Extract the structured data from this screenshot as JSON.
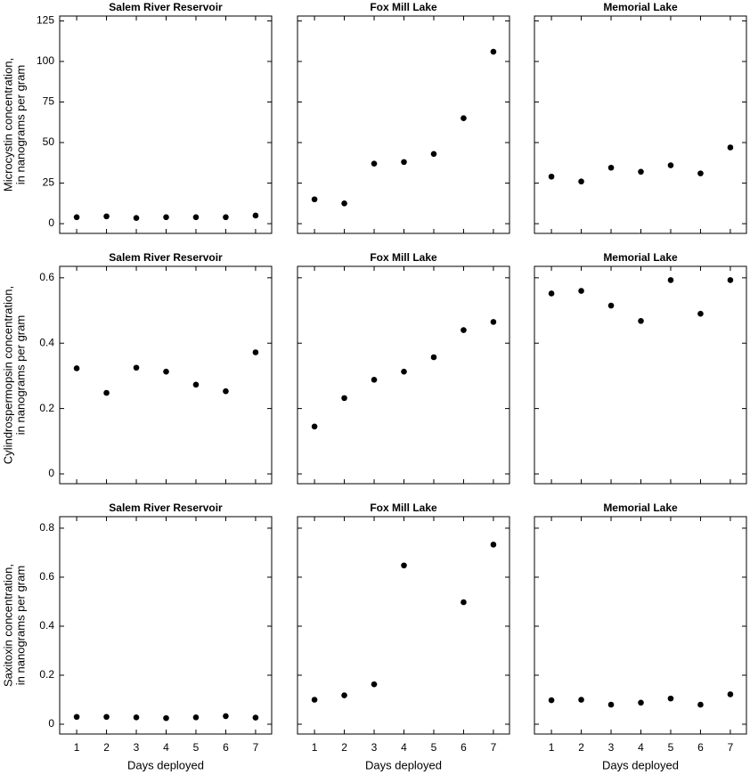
{
  "chart_data": [
    {
      "type": "scatter",
      "title": "Salem River Reservoir",
      "ylabel": [
        "Microcystin concentration,",
        "in nanograms per gram"
      ],
      "x": [
        1,
        2,
        3,
        4,
        5,
        6,
        7
      ],
      "values": [
        4,
        4.5,
        3.5,
        4,
        4,
        4,
        5
      ],
      "xlim": [
        0.43,
        7.54
      ],
      "ylim": [
        -6,
        128
      ],
      "xticks": [
        1,
        2,
        3,
        4,
        5,
        6,
        7
      ],
      "yticks": [
        0,
        25,
        50,
        75,
        100,
        125
      ],
      "color": "#000000"
    },
    {
      "type": "scatter",
      "title": "Fox Mill Lake",
      "x": [
        1,
        2,
        3,
        4,
        5,
        6,
        7
      ],
      "values": [
        15,
        12.5,
        37,
        38,
        43,
        65,
        106
      ],
      "xlim": [
        0.43,
        7.54
      ],
      "ylim": [
        -6,
        128
      ],
      "xticks": [
        1,
        2,
        3,
        4,
        5,
        6,
        7
      ],
      "yticks": [
        0,
        25,
        50,
        75,
        100,
        125
      ],
      "color": "#000000"
    },
    {
      "type": "scatter",
      "title": "Memorial Lake",
      "x": [
        1,
        2,
        3,
        4,
        5,
        6,
        7
      ],
      "values": [
        29,
        26,
        34.5,
        32,
        36,
        31,
        47
      ],
      "xlim": [
        0.43,
        7.54
      ],
      "ylim": [
        -6,
        128
      ],
      "xticks": [
        1,
        2,
        3,
        4,
        5,
        6,
        7
      ],
      "yticks": [
        0,
        25,
        50,
        75,
        100,
        125
      ],
      "color": "#000000"
    },
    {
      "type": "scatter",
      "title": "Salem River Reservoir",
      "ylabel": [
        "Cylindrospermopsin concentration,",
        "in nanograms per gram"
      ],
      "x": [
        1,
        2,
        3,
        4,
        5,
        6,
        7
      ],
      "values": [
        0.323,
        0.248,
        0.325,
        0.313,
        0.273,
        0.253,
        0.372
      ],
      "xlim": [
        0.43,
        7.54
      ],
      "ylim": [
        -0.03,
        0.635
      ],
      "xticks": [
        1,
        2,
        3,
        4,
        5,
        6,
        7
      ],
      "yticks": [
        0,
        0.2,
        0.4,
        0.6
      ],
      "color": "#000000"
    },
    {
      "type": "scatter",
      "title": "Fox Mill Lake",
      "x": [
        1,
        2,
        3,
        4,
        5,
        6,
        7
      ],
      "values": [
        0.145,
        0.232,
        0.288,
        0.313,
        0.357,
        0.44,
        0.465
      ],
      "xlim": [
        0.43,
        7.54
      ],
      "ylim": [
        -0.03,
        0.635
      ],
      "xticks": [
        1,
        2,
        3,
        4,
        5,
        6,
        7
      ],
      "yticks": [
        0,
        0.2,
        0.4,
        0.6
      ],
      "color": "#000000"
    },
    {
      "type": "scatter",
      "title": "Memorial Lake",
      "x": [
        1,
        2,
        3,
        4,
        5,
        6,
        7
      ],
      "values": [
        0.552,
        0.56,
        0.515,
        0.468,
        0.593,
        0.49,
        0.593
      ],
      "xlim": [
        0.43,
        7.54
      ],
      "ylim": [
        -0.03,
        0.635
      ],
      "xticks": [
        1,
        2,
        3,
        4,
        5,
        6,
        7
      ],
      "yticks": [
        0,
        0.2,
        0.4,
        0.6
      ],
      "color": "#000000"
    },
    {
      "type": "scatter",
      "title": "Salem River Reservoir",
      "ylabel": [
        "Saxitoxin concentration,",
        "in nanograms per gram"
      ],
      "xlabel": "Days deployed",
      "x": [
        1,
        2,
        3,
        4,
        5,
        6,
        7
      ],
      "values": [
        0.03,
        0.03,
        0.028,
        0.025,
        0.028,
        0.033,
        0.027
      ],
      "xlim": [
        0.43,
        7.54
      ],
      "ylim": [
        -0.04,
        0.847
      ],
      "xticks": [
        1,
        2,
        3,
        4,
        5,
        6,
        7
      ],
      "yticks": [
        0,
        0.2,
        0.4,
        0.6,
        0.8
      ],
      "color": "#000000"
    },
    {
      "type": "scatter",
      "title": "Fox Mill Lake",
      "xlabel": "Days deployed",
      "x": [
        1,
        2,
        3,
        4,
        5,
        6,
        7
      ],
      "values": [
        0.1,
        0.118,
        0.163,
        0.648,
        null,
        0.498,
        0.733
      ],
      "xlim": [
        0.43,
        7.54
      ],
      "ylim": [
        -0.04,
        0.847
      ],
      "xticks": [
        1,
        2,
        3,
        4,
        5,
        6,
        7
      ],
      "yticks": [
        0,
        0.2,
        0.4,
        0.6,
        0.8
      ],
      "color": "#000000"
    },
    {
      "type": "scatter",
      "title": "Memorial Lake",
      "xlabel": "Days deployed",
      "x": [
        1,
        2,
        3,
        4,
        5,
        6,
        7
      ],
      "values": [
        0.098,
        0.1,
        0.08,
        0.088,
        0.105,
        0.08,
        0.122
      ],
      "xlim": [
        0.43,
        7.54
      ],
      "ylim": [
        -0.04,
        0.847
      ],
      "xticks": [
        1,
        2,
        3,
        4,
        5,
        6,
        7
      ],
      "yticks": [
        0,
        0.2,
        0.4,
        0.6,
        0.8
      ],
      "color": "#000000"
    }
  ]
}
